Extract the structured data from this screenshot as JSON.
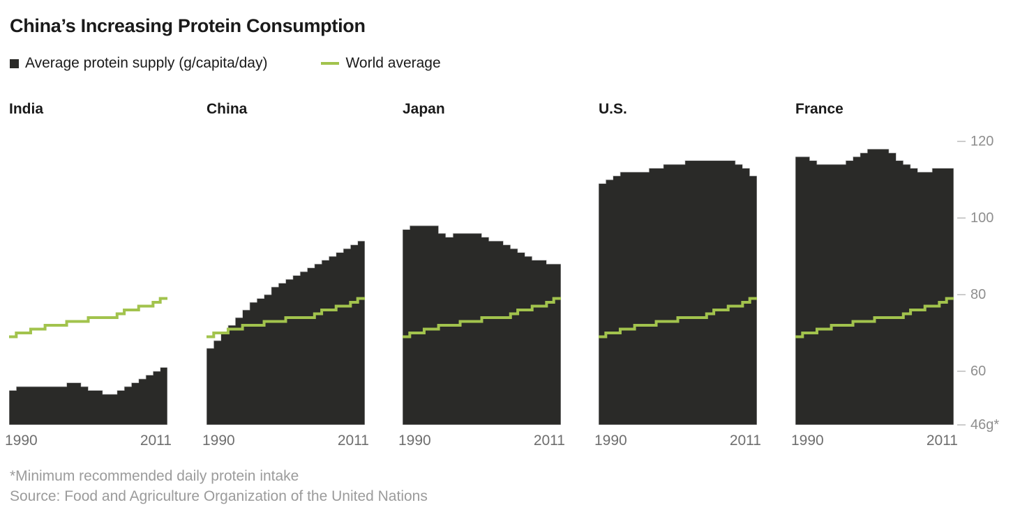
{
  "header": {
    "title": "China’s Increasing Protein Consumption",
    "legend": [
      {
        "swatch": "dark-square",
        "label": "Average protein supply (g/capita/day)"
      },
      {
        "swatch": "green-line",
        "label": "World average"
      }
    ]
  },
  "colors": {
    "bars": "#2a2a28",
    "bar_outline": "#cfcfcf",
    "world_line": "#a2c34d",
    "title_text": "#1a1a1a",
    "x_label_text": "#6e6e6e",
    "y_label_text": "#8e8e8e",
    "footnote_text": "#9b9b9b"
  },
  "footnotes": [
    "*Minimum recommended daily protein intake",
    "Source: Food and Agriculture Organization of the United Nations"
  ],
  "chart_data": {
    "type": "bar",
    "title": "China’s Increasing Protein Consumption",
    "ylabel": "Average protein supply (g/capita/day)",
    "x_range": [
      1990,
      2011
    ],
    "x_tick_labels": [
      "1990",
      "2011"
    ],
    "years": [
      1990,
      1991,
      1992,
      1993,
      1994,
      1995,
      1996,
      1997,
      1998,
      1999,
      2000,
      2001,
      2002,
      2003,
      2004,
      2005,
      2006,
      2007,
      2008,
      2009,
      2010,
      2011
    ],
    "y_baseline": 46,
    "ylim": [
      46,
      124
    ],
    "y_ticks": [
      {
        "value": 120,
        "label": "120"
      },
      {
        "value": 100,
        "label": "100"
      },
      {
        "value": 80,
        "label": "80"
      },
      {
        "value": 60,
        "label": "60"
      },
      {
        "value": 46,
        "label": "46g*"
      }
    ],
    "grid": false,
    "legend_position": "top-left",
    "panels": [
      {
        "name": "India",
        "values": [
          55,
          56,
          56,
          56,
          56,
          56,
          56,
          56,
          57,
          57,
          56,
          55,
          55,
          54,
          54,
          55,
          56,
          57,
          58,
          59,
          60,
          61
        ]
      },
      {
        "name": "China",
        "values": [
          66,
          68,
          70,
          72,
          74,
          76,
          78,
          79,
          80,
          82,
          83,
          84,
          85,
          86,
          87,
          88,
          89,
          90,
          91,
          92,
          93,
          94
        ]
      },
      {
        "name": "Japan",
        "values": [
          97,
          98,
          98,
          98,
          98,
          96,
          95,
          96,
          96,
          96,
          96,
          95,
          94,
          94,
          93,
          92,
          91,
          90,
          89,
          89,
          88,
          88
        ]
      },
      {
        "name": "U.S.",
        "values": [
          109,
          110,
          111,
          112,
          112,
          112,
          112,
          113,
          113,
          114,
          114,
          114,
          115,
          115,
          115,
          115,
          115,
          115,
          115,
          114,
          113,
          111
        ]
      },
      {
        "name": "France",
        "values": [
          116,
          116,
          115,
          114,
          114,
          114,
          114,
          115,
          116,
          117,
          118,
          118,
          118,
          117,
          115,
          114,
          113,
          112,
          112,
          113,
          113,
          113
        ]
      }
    ],
    "world_average": {
      "label": "World average",
      "values": [
        69,
        70,
        70,
        71,
        71,
        72,
        72,
        72,
        73,
        73,
        73,
        74,
        74,
        74,
        74,
        75,
        76,
        76,
        77,
        77,
        78,
        79
      ]
    }
  }
}
